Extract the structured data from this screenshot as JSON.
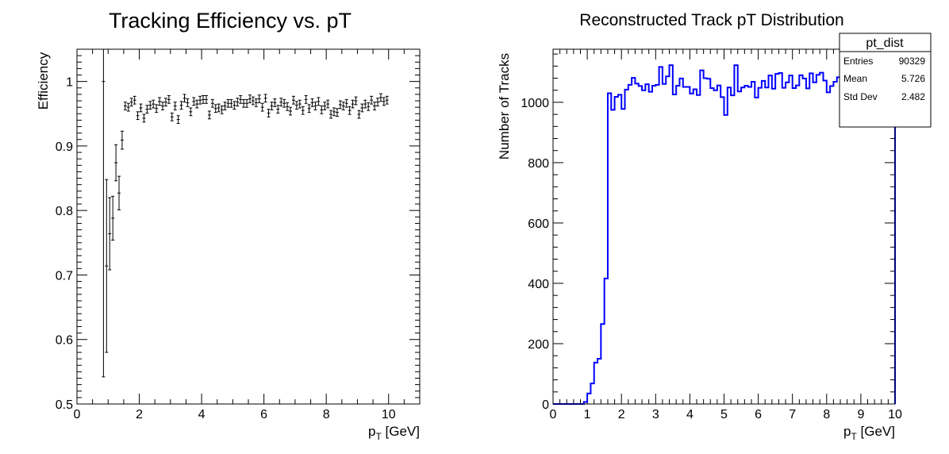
{
  "chart_data": [
    {
      "type": "scatter",
      "title": "Tracking Efficiency vs. pT",
      "xlabel_main": "p",
      "xlabel_sub": "T",
      "xlabel_unit": " [GeV]",
      "ylabel": "Efficiency",
      "xlim": [
        0,
        11
      ],
      "ylim": [
        0.5,
        1.05
      ],
      "xticks": [
        0,
        2,
        4,
        6,
        8,
        10
      ],
      "yticks": [
        0.5,
        0.6,
        0.7,
        0.8,
        0.9,
        1
      ],
      "ytick_labels": [
        "0.5",
        "0.6",
        "0.7",
        "0.8",
        "0.9",
        "1"
      ],
      "bin_width": 0.1,
      "series": [
        {
          "x": [
            0.85,
            0.95,
            1.05,
            1.15,
            1.25,
            1.35,
            1.45,
            1.55,
            1.65,
            1.75,
            1.85,
            1.95,
            2.05,
            2.15,
            2.25,
            2.35,
            2.45,
            2.55,
            2.65,
            2.75,
            2.85,
            2.95,
            3.05,
            3.15,
            3.25,
            3.35,
            3.45,
            3.55,
            3.65,
            3.75,
            3.85,
            3.95,
            4.05,
            4.15,
            4.25,
            4.35,
            4.45,
            4.55,
            4.65,
            4.75,
            4.85,
            4.95,
            5.05,
            5.15,
            5.25,
            5.35,
            5.45,
            5.55,
            5.65,
            5.75,
            5.85,
            5.95,
            6.05,
            6.15,
            6.25,
            6.35,
            6.45,
            6.55,
            6.65,
            6.75,
            6.85,
            6.95,
            7.05,
            7.15,
            7.25,
            7.35,
            7.45,
            7.55,
            7.65,
            7.75,
            7.85,
            7.95,
            8.05,
            8.15,
            8.25,
            8.35,
            8.45,
            8.55,
            8.65,
            8.75,
            8.85,
            8.95,
            9.05,
            9.15,
            9.25,
            9.35,
            9.45,
            9.55,
            9.65,
            9.75,
            9.85,
            9.95
          ],
          "y": [
            1.0,
            0.714,
            0.764,
            0.788,
            0.874,
            0.827,
            0.909,
            0.962,
            0.96,
            0.968,
            0.971,
            0.947,
            0.959,
            0.943,
            0.957,
            0.963,
            0.965,
            0.958,
            0.969,
            0.962,
            0.968,
            0.972,
            0.945,
            0.962,
            0.941,
            0.963,
            0.974,
            0.967,
            0.953,
            0.969,
            0.965,
            0.971,
            0.972,
            0.972,
            0.948,
            0.966,
            0.958,
            0.959,
            0.956,
            0.962,
            0.966,
            0.966,
            0.963,
            0.968,
            0.972,
            0.966,
            0.966,
            0.973,
            0.97,
            0.967,
            0.973,
            0.96,
            0.974,
            0.951,
            0.962,
            0.967,
            0.957,
            0.968,
            0.966,
            0.961,
            0.954,
            0.971,
            0.963,
            0.965,
            0.955,
            0.972,
            0.958,
            0.967,
            0.962,
            0.969,
            0.956,
            0.962,
            0.965,
            0.949,
            0.953,
            0.952,
            0.964,
            0.962,
            0.966,
            0.955,
            0.965,
            0.97,
            0.949,
            0.959,
            0.965,
            0.961,
            0.971,
            0.962,
            0.968,
            0.975,
            0.969,
            0.971
          ],
          "y_err": [
            0.458,
            0.134,
            0.056,
            0.034,
            0.028,
            0.026,
            0.014,
            0.006,
            0.006,
            0.006,
            0.006,
            0.006,
            0.006,
            0.006,
            0.006,
            0.006,
            0.006,
            0.006,
            0.006,
            0.006,
            0.006,
            0.006,
            0.006,
            0.006,
            0.006,
            0.006,
            0.006,
            0.006,
            0.006,
            0.006,
            0.006,
            0.006,
            0.006,
            0.006,
            0.006,
            0.006,
            0.006,
            0.006,
            0.006,
            0.006,
            0.006,
            0.006,
            0.006,
            0.006,
            0.006,
            0.006,
            0.006,
            0.006,
            0.006,
            0.006,
            0.006,
            0.006,
            0.006,
            0.006,
            0.006,
            0.006,
            0.006,
            0.006,
            0.006,
            0.006,
            0.006,
            0.006,
            0.006,
            0.006,
            0.006,
            0.006,
            0.006,
            0.006,
            0.006,
            0.006,
            0.006,
            0.006,
            0.006,
            0.006,
            0.006,
            0.006,
            0.006,
            0.006,
            0.006,
            0.006,
            0.006,
            0.006,
            0.006,
            0.006,
            0.006,
            0.006,
            0.006,
            0.006,
            0.006,
            0.006,
            0.006,
            0.006
          ],
          "color": "#000000"
        }
      ]
    },
    {
      "type": "histogram",
      "title": "Reconstructed Track pT Distribution",
      "xlabel_main": "p",
      "xlabel_sub": "T",
      "xlabel_unit": " [GeV]",
      "ylabel": "Number of Tracks",
      "xlim": [
        0,
        10
      ],
      "ylim": [
        0,
        1176
      ],
      "xticks": [
        0,
        1,
        2,
        3,
        4,
        5,
        6,
        7,
        8,
        9,
        10
      ],
      "yticks": [
        0,
        200,
        400,
        600,
        800,
        1000
      ],
      "bin_width": 0.1,
      "bins_start": 0,
      "color": "#0000ff",
      "values": [
        0,
        0,
        0,
        0,
        0,
        0,
        0,
        0,
        0,
        7,
        35,
        68,
        137,
        150,
        265,
        416,
        1030,
        975,
        1018,
        1025,
        978,
        1042,
        1058,
        1081,
        1062,
        1054,
        1040,
        1060,
        1035,
        1055,
        1058,
        1117,
        1061,
        1086,
        1123,
        1026,
        1055,
        1079,
        1051,
        1051,
        1029,
        1043,
        1024,
        1106,
        1080,
        1078,
        1047,
        1040,
        1056,
        1017,
        958,
        1049,
        1023,
        1123,
        1036,
        1049,
        1055,
        1051,
        1068,
        1016,
        1048,
        1071,
        1049,
        1089,
        1045,
        1094,
        1097,
        1048,
        1066,
        1089,
        1047,
        1056,
        1090,
        1079,
        1046,
        1096,
        1066,
        1091,
        1098,
        1072,
        1033,
        1054,
        1068,
        1083,
        1063,
        1083,
        1071,
        1053,
        1092,
        1103,
        1044,
        1061,
        1085,
        1032,
        1097,
        1095,
        1060,
        1074,
        1073,
        1061
      ],
      "stats": {
        "name": "pt_dist",
        "rows": [
          {
            "label": "Entries",
            "value": "90329"
          },
          {
            "label": "Mean",
            "value": "5.726"
          },
          {
            "label": "Std Dev",
            "value": "2.482"
          }
        ]
      }
    }
  ]
}
